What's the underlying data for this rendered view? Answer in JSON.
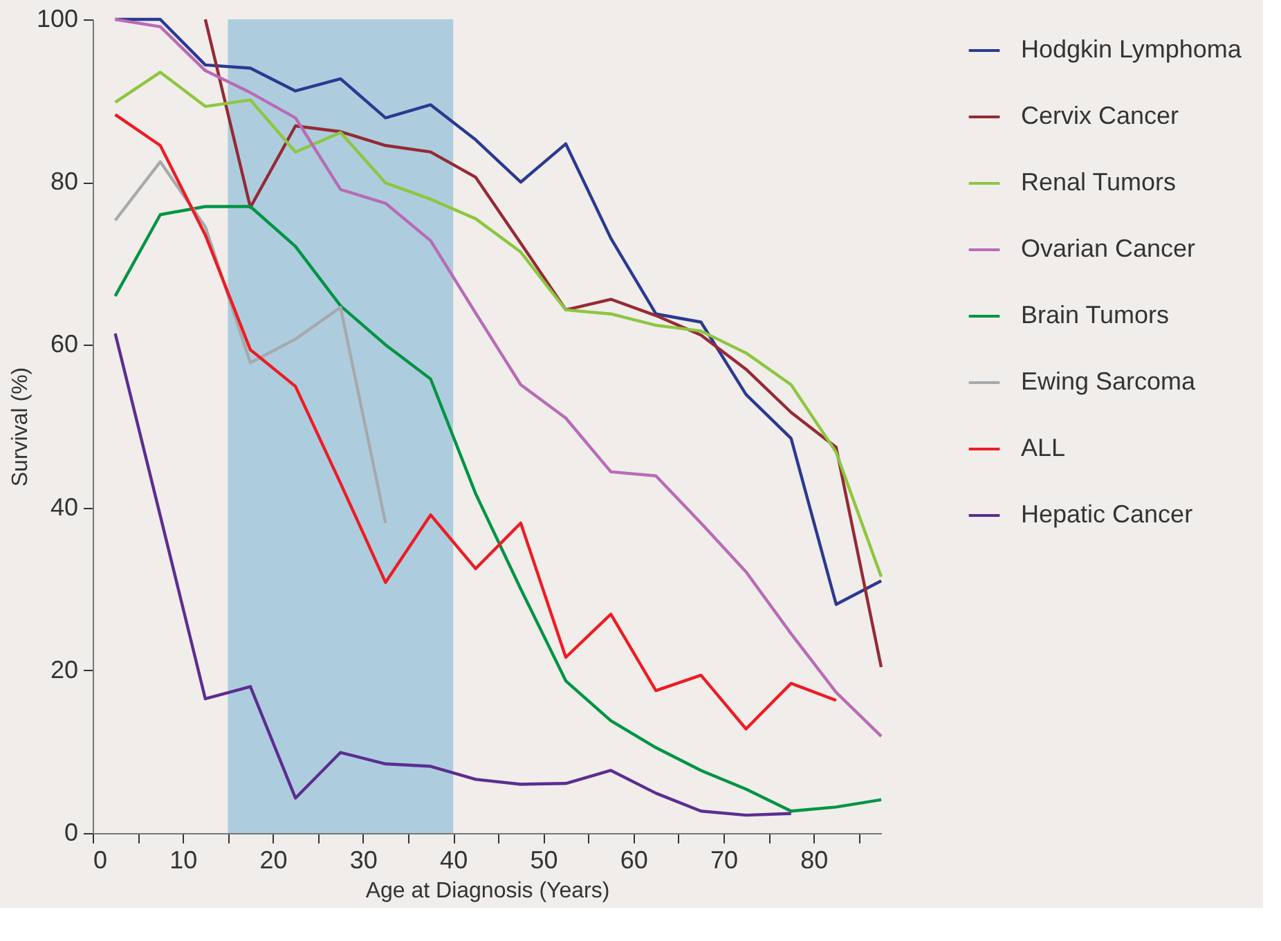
{
  "chart_data": {
    "type": "line",
    "xlabel": "Age at Diagnosis (Years)",
    "ylabel": "Survival (%)",
    "x": [
      2.5,
      7.5,
      12.5,
      17.5,
      22.5,
      27.5,
      32.5,
      37.5,
      42.5,
      47.5,
      52.5,
      57.5,
      62.5,
      67.5,
      72.5,
      77.5,
      82.5,
      87.5
    ],
    "xlim": [
      0,
      87.5
    ],
    "xticks": [
      0,
      {
        "value": 5,
        "label": null
      },
      10,
      {
        "value": 15,
        "label": null
      },
      20,
      {
        "value": 25,
        "label": null
      },
      30,
      {
        "value": 35,
        "label": null
      },
      40,
      {
        "value": 45,
        "label": null
      },
      50,
      {
        "value": 55,
        "label": null
      },
      60,
      {
        "value": 65,
        "label": null
      },
      70,
      {
        "value": 75,
        "label": null
      },
      80,
      {
        "value": 85,
        "label": null
      }
    ],
    "ylim": [
      0,
      100
    ],
    "yticks": [
      0,
      20,
      40,
      60,
      80,
      100
    ],
    "grid": false,
    "legend": "right",
    "marker": "none",
    "line_style": "solid",
    "bands": [
      {
        "axis": "x",
        "from": 15,
        "to": 40,
        "color": "#adcdde"
      }
    ],
    "series": [
      {
        "name": "Hodgkin Lymphoma",
        "color": "#2b3990",
        "values": [
          100,
          100,
          94.4,
          94,
          91.2,
          92.7,
          87.9,
          89.5,
          85.2,
          80,
          84.7,
          73.1,
          63.8,
          62.8,
          53.9,
          48.5,
          28.1,
          31
        ]
      },
      {
        "name": "Cervix Cancer",
        "color": "#952a35",
        "values": [
          null,
          null,
          100,
          76.9,
          86.9,
          86.2,
          84.5,
          83.7,
          80.6,
          72.5,
          64.3,
          65.6,
          63.6,
          61.2,
          57,
          51.7,
          47.4,
          20.4
        ]
      },
      {
        "name": "Renal Tumors",
        "color": "#8dc63f",
        "values": [
          89.8,
          93.5,
          89.3,
          90.1,
          83.7,
          86.1,
          79.9,
          77.9,
          75.5,
          71.4,
          64.3,
          63.8,
          62.4,
          61.7,
          59,
          55.1,
          46.8,
          31.5
        ]
      },
      {
        "name": "Ovarian Cancer",
        "color": "#b96bb5",
        "values": [
          100,
          99.1,
          93.7,
          91,
          87.9,
          79.1,
          77.4,
          72.8,
          63.9,
          55.1,
          51,
          44.4,
          43.9,
          38.1,
          32.1,
          24.5,
          17.3,
          11.9
        ]
      },
      {
        "name": "Brain Tumors",
        "color": "#009444",
        "values": [
          66,
          76,
          77,
          77,
          72.1,
          64.8,
          60,
          55.8,
          41.7,
          30,
          18.7,
          13.8,
          10.5,
          7.7,
          5.4,
          2.7,
          3.2,
          4.1
        ]
      },
      {
        "name": "Ewing Sarcoma",
        "color": "#a7a9ac",
        "values": [
          75.3,
          82.5,
          74.5,
          57.8,
          60.7,
          64.6,
          38.1,
          null,
          null,
          null,
          null,
          null,
          null,
          null,
          null,
          null,
          null,
          null
        ]
      },
      {
        "name": "ALL",
        "color": "#ed1c24",
        "values": [
          88.3,
          84.5,
          73.5,
          59.4,
          54.9,
          43,
          30.8,
          39.1,
          32.5,
          38.1,
          21.6,
          26.9,
          17.5,
          19.4,
          12.8,
          18.4,
          16.3,
          null
        ]
      },
      {
        "name": "Hepatic Cancer",
        "color": "#5c2d91",
        "values": [
          61.4,
          39,
          16.5,
          18,
          4.3,
          9.9,
          8.5,
          8.2,
          6.6,
          6,
          6.1,
          7.7,
          4.9,
          2.7,
          2.2,
          2.4,
          null,
          null
        ]
      }
    ]
  }
}
